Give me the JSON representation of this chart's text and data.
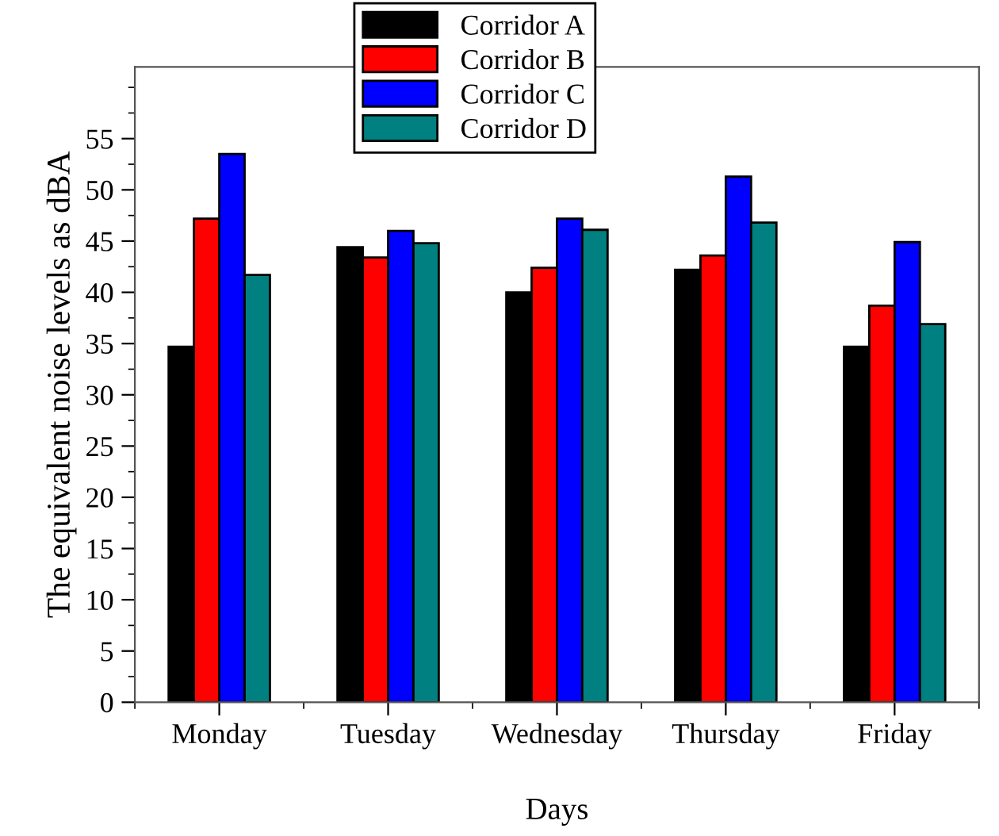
{
  "chart_data": {
    "type": "bar",
    "xlabel": "Days",
    "ylabel": "The equivalent noise levels as dBA",
    "categories": [
      "Monday",
      "Tuesday",
      "Wednesday",
      "Thursday",
      "Friday"
    ],
    "series": [
      {
        "name": "Corridor A",
        "color": "#000000",
        "values": [
          34.7,
          44.4,
          40.0,
          42.2,
          34.7
        ]
      },
      {
        "name": "Corridor B",
        "color": "#ff0000",
        "values": [
          47.2,
          43.4,
          42.4,
          43.6,
          38.7
        ]
      },
      {
        "name": "Corridor C",
        "color": "#0000ff",
        "values": [
          53.5,
          46.0,
          47.2,
          51.3,
          44.9
        ]
      },
      {
        "name": "Corridor D",
        "color": "#008080",
        "values": [
          41.7,
          44.8,
          46.1,
          46.8,
          36.9
        ]
      }
    ],
    "ylim": [
      0,
      62
    ],
    "yticks": [
      0,
      5,
      10,
      15,
      20,
      25,
      30,
      35,
      40,
      45,
      50,
      55
    ],
    "grid": false,
    "legend": "top left"
  }
}
